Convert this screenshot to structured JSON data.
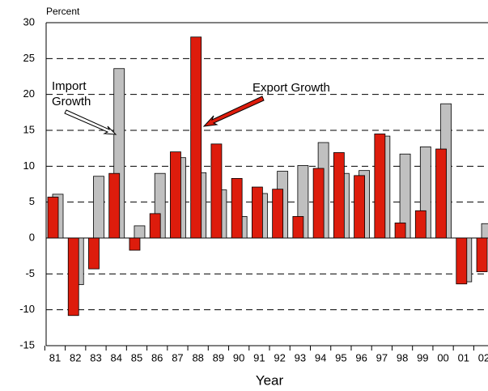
{
  "chart_data": {
    "type": "bar",
    "y_label": "Percent",
    "x_label": "Year",
    "categories": [
      "81",
      "82",
      "83",
      "84",
      "85",
      "86",
      "87",
      "88",
      "89",
      "90",
      "91",
      "92",
      "93",
      "94",
      "95",
      "96",
      "97",
      "98",
      "99",
      "00",
      "01",
      "02"
    ],
    "series": [
      {
        "name": "Export Growth",
        "color": "#dd1c0c",
        "values": [
          5.7,
          -10.8,
          -4.3,
          9.0,
          -1.7,
          3.4,
          12.0,
          28.0,
          13.1,
          8.3,
          7.1,
          6.8,
          3.0,
          9.7,
          11.9,
          8.7,
          14.5,
          2.1,
          3.8,
          12.4,
          -6.4,
          -4.7
        ]
      },
      {
        "name": "Import Growth",
        "color": "#c0c0c0",
        "values": [
          6.1,
          -6.5,
          8.6,
          23.6,
          1.7,
          9.0,
          11.2,
          9.1,
          6.7,
          3.0,
          6.2,
          9.3,
          10.1,
          13.3,
          9.0,
          9.4,
          14.2,
          11.7,
          12.7,
          18.7,
          -6.1,
          2.0
        ]
      }
    ],
    "ylim": [
      -15,
      30
    ],
    "yticks": [
      -15,
      -10,
      -5,
      0,
      5,
      10,
      15,
      20,
      25,
      30
    ],
    "grid": true
  }
}
